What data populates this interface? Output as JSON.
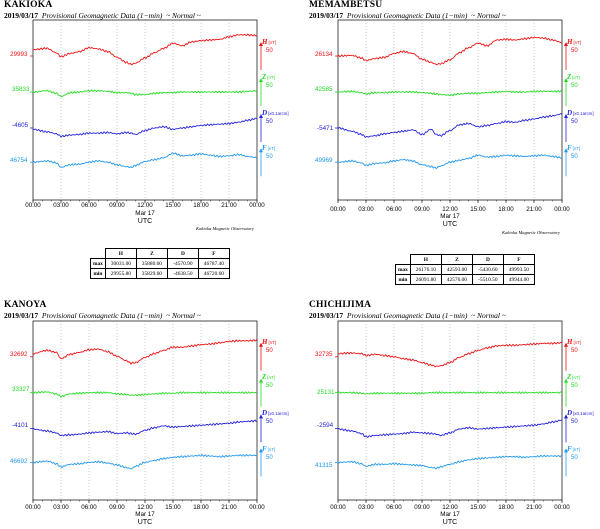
{
  "date": "2019/03/17",
  "subtitle_text": "Provisional Geomagnetic Data (1−min)",
  "subtitle_mode": "~ Normal ~",
  "x_axis": {
    "ticks": [
      "00:00",
      "03:00",
      "06:00",
      "09:00",
      "12:00",
      "15:00",
      "18:00",
      "21:00",
      "00:00"
    ],
    "date_label": "Mar 17",
    "unit_label": "UTC"
  },
  "scale_value": "50",
  "credit": "Kakioka Magnetic Observatory",
  "colors": {
    "H": "#ee1111",
    "Z": "#22dd22",
    "D": "#2222dd",
    "F": "#2299ee"
  },
  "units": {
    "H": "[nT]",
    "Z": "[nT]",
    "D": "[x0.1arcm]",
    "F": "[nT]"
  },
  "stats_tables": [
    {
      "headers": [
        "H",
        "Z",
        "D",
        "F"
      ],
      "rows": [
        {
          "label": "max",
          "values": [
            "30031.00",
            "35880.60",
            "-4570.90",
            "46787.40"
          ]
        },
        {
          "label": "min",
          "values": [
            "29955.80",
            "35829.60",
            "-4638.50",
            "46720.60"
          ]
        }
      ]
    },
    {
      "headers": [
        "H",
        "Z",
        "D",
        "F"
      ],
      "rows": [
        {
          "label": "max",
          "values": [
            "26176.10",
            "42593.00",
            "-5430.60",
            "49993.50"
          ]
        },
        {
          "label": "min",
          "values": [
            "26091.80",
            "42576.00",
            "-5510.50",
            "49944.00"
          ]
        }
      ]
    }
  ],
  "chart_data": [
    {
      "type": "line",
      "station": "KAKIOKA",
      "title": "KAKIOKA",
      "xlabel": "UTC",
      "x_hours": [
        0,
        1.5,
        2.5,
        3,
        4,
        5,
        6,
        7,
        8,
        9,
        10,
        10.5,
        11,
        12,
        13,
        14,
        15,
        16,
        17,
        18,
        19,
        20,
        21,
        22,
        23,
        24
      ],
      "series": [
        {
          "name": "H",
          "unit": "[nT]",
          "ref_label": "29993",
          "values": [
            20,
            24,
            10,
            -2,
            8,
            14,
            26,
            22,
            14,
            -4,
            -20,
            -26,
            -22,
            -6,
            10,
            24,
            40,
            32,
            44,
            48,
            50,
            52,
            60,
            66,
            66,
            64
          ]
        },
        {
          "name": "Z",
          "unit": "[nT]",
          "ref_label": "35833",
          "values": [
            0,
            4,
            -4,
            -14,
            -2,
            0,
            4,
            4,
            2,
            -2,
            -2,
            -4,
            -8,
            -8,
            -4,
            -2,
            -2,
            0,
            0,
            0,
            0,
            0,
            0,
            0,
            2,
            4
          ]
        },
        {
          "name": "D",
          "unit": "[x0.1arcm]",
          "ref_label": "-4605",
          "values": [
            -4,
            -12,
            -18,
            -26,
            -22,
            -20,
            -16,
            -16,
            -14,
            -18,
            -14,
            -16,
            -20,
            -8,
            0,
            4,
            -4,
            0,
            4,
            8,
            10,
            12,
            14,
            18,
            24,
            30
          ]
        },
        {
          "name": "F",
          "unit": "[nT]",
          "ref_label": "46754",
          "values": [
            0,
            4,
            -2,
            -16,
            -8,
            -6,
            0,
            4,
            0,
            -8,
            -14,
            -16,
            -10,
            2,
            8,
            14,
            28,
            20,
            22,
            26,
            22,
            18,
            20,
            24,
            18,
            14
          ]
        }
      ]
    },
    {
      "type": "line",
      "station": "MEMAMBETSU",
      "title": "MEMAMBETSU",
      "xlabel": "UTC",
      "x_hours": [
        0,
        1.5,
        2.5,
        3,
        4,
        5,
        6,
        7,
        8,
        9,
        10,
        10.5,
        11,
        12,
        13,
        14,
        15,
        16,
        17,
        18,
        19,
        20,
        21,
        22,
        23,
        24
      ],
      "series": [
        {
          "name": "H",
          "unit": "[nT]",
          "ref_label": "26134",
          "values": [
            0,
            2,
            -6,
            -14,
            -8,
            -4,
            8,
            14,
            8,
            -10,
            -20,
            -26,
            -24,
            -12,
            10,
            26,
            40,
            32,
            50,
            52,
            50,
            54,
            58,
            56,
            50,
            42
          ]
        },
        {
          "name": "Z",
          "unit": "[nT]",
          "ref_label": "42585",
          "values": [
            0,
            2,
            -2,
            -6,
            -2,
            -2,
            0,
            0,
            0,
            -2,
            -4,
            -6,
            -8,
            -10,
            -6,
            -4,
            -4,
            -2,
            0,
            2,
            0,
            0,
            2,
            2,
            2,
            2
          ]
        },
        {
          "name": "D",
          "unit": "[x0.1arcm]",
          "ref_label": "-5471",
          "values": [
            0,
            -10,
            -20,
            -28,
            -24,
            -18,
            -14,
            -10,
            -6,
            -20,
            -4,
            -20,
            -24,
            -8,
            10,
            14,
            4,
            8,
            14,
            20,
            18,
            24,
            28,
            34,
            38,
            44
          ]
        },
        {
          "name": "F",
          "unit": "[nT]",
          "ref_label": "49969",
          "values": [
            0,
            4,
            -2,
            -10,
            -4,
            -2,
            4,
            8,
            4,
            -8,
            -14,
            -18,
            -12,
            0,
            6,
            12,
            22,
            16,
            18,
            22,
            20,
            18,
            20,
            22,
            18,
            14
          ]
        }
      ]
    },
    {
      "type": "line",
      "station": "KANOYA",
      "title": "KANOYA",
      "xlabel": "UTC",
      "x_hours": [
        0,
        1.5,
        2.5,
        3,
        4,
        5,
        6,
        7,
        8,
        9,
        10,
        10.5,
        11,
        12,
        13,
        14,
        15,
        16,
        17,
        18,
        19,
        20,
        21,
        22,
        23,
        24
      ],
      "series": [
        {
          "name": "H",
          "unit": "[nT]",
          "ref_label": "32692",
          "values": [
            10,
            20,
            14,
            -6,
            8,
            14,
            22,
            24,
            16,
            2,
            -12,
            -20,
            -18,
            -2,
            10,
            20,
            30,
            30,
            34,
            38,
            40,
            44,
            48,
            50,
            50,
            52
          ]
        },
        {
          "name": "Z",
          "unit": "[nT]",
          "ref_label": "33327",
          "values": [
            0,
            2,
            -4,
            -12,
            -4,
            -2,
            0,
            0,
            0,
            -4,
            -6,
            -8,
            -8,
            -6,
            -4,
            -2,
            -2,
            0,
            0,
            0,
            0,
            0,
            0,
            0,
            0,
            0
          ]
        },
        {
          "name": "D",
          "unit": "[x0.1arcm]",
          "ref_label": "-4101",
          "values": [
            -2,
            -8,
            -14,
            -22,
            -20,
            -18,
            -14,
            -12,
            -10,
            -16,
            -14,
            -16,
            -18,
            -6,
            2,
            8,
            4,
            6,
            8,
            10,
            12,
            14,
            16,
            20,
            22,
            24
          ]
        },
        {
          "name": "F",
          "unit": "[nT]",
          "ref_label": "46692",
          "values": [
            0,
            4,
            -4,
            -14,
            -6,
            -4,
            0,
            2,
            -2,
            -8,
            -16,
            -20,
            -12,
            0,
            6,
            12,
            16,
            18,
            20,
            22,
            20,
            18,
            20,
            22,
            22,
            22
          ]
        }
      ]
    },
    {
      "type": "line",
      "station": "CHICHIJIMA",
      "title": "CHICHIJIMA",
      "xlabel": "UTC",
      "x_hours": [
        0,
        1.5,
        2.5,
        3,
        4,
        5,
        6,
        7,
        8,
        9,
        10,
        10.5,
        11,
        12,
        13,
        14,
        15,
        16,
        17,
        18,
        19,
        20,
        21,
        22,
        23,
        24
      ],
      "series": [
        {
          "name": "H",
          "unit": "[nT]",
          "ref_label": "32735",
          "values": [
            10,
            12,
            10,
            4,
            8,
            4,
            0,
            -6,
            -10,
            -18,
            -26,
            -30,
            -28,
            -18,
            -2,
            10,
            20,
            28,
            34,
            36,
            36,
            38,
            40,
            42,
            42,
            44
          ]
        },
        {
          "name": "Z",
          "unit": "[nT]",
          "ref_label": "25131",
          "values": [
            0,
            0,
            -2,
            -4,
            -2,
            -2,
            -2,
            -2,
            -2,
            -2,
            0,
            0,
            0,
            0,
            0,
            0,
            0,
            0,
            0,
            0,
            0,
            0,
            0,
            0,
            0,
            0
          ]
        },
        {
          "name": "D",
          "unit": "[x0.1arcm]",
          "ref_label": "-2594",
          "values": [
            -2,
            -8,
            -16,
            -26,
            -22,
            -20,
            -18,
            -16,
            -12,
            -14,
            -16,
            -18,
            -22,
            -14,
            -2,
            2,
            -2,
            0,
            2,
            4,
            6,
            8,
            10,
            14,
            20,
            26
          ]
        },
        {
          "name": "F",
          "unit": "[nT]",
          "ref_label": "41315",
          "values": [
            0,
            2,
            -4,
            -12,
            -6,
            -6,
            -4,
            -6,
            -8,
            -10,
            -16,
            -18,
            -14,
            -6,
            2,
            8,
            12,
            14,
            16,
            18,
            18,
            16,
            18,
            20,
            20,
            20
          ]
        }
      ]
    }
  ]
}
